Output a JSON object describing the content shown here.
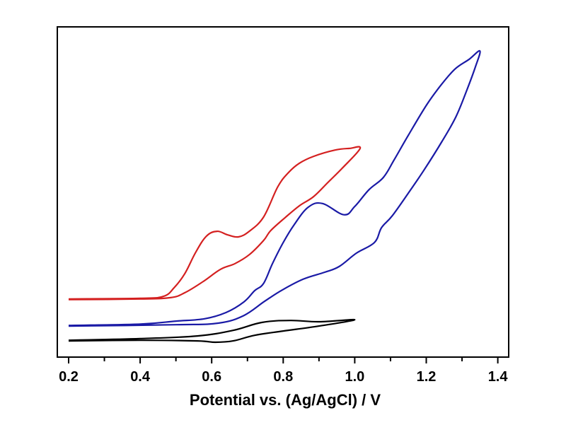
{
  "chart_data": {
    "type": "line",
    "title": "",
    "xlabel": "Potential vs. (Ag/AgCl) / V",
    "ylabel": "",
    "xlim": [
      0.18,
      1.43
    ],
    "ylim": [
      0,
      100
    ],
    "x_ticks": [
      "0.2",
      "0.4",
      "0.6",
      "0.8",
      "1.0",
      "1.2",
      "1.4"
    ],
    "x_tick_values": [
      0.2,
      0.4,
      0.6,
      0.8,
      1.0,
      1.2,
      1.4
    ],
    "x_minor_tick_values": [
      0.3,
      0.5,
      0.7,
      0.9,
      1.1,
      1.3
    ],
    "y_ticks": [],
    "grid": false,
    "legend": "none",
    "series": [
      {
        "name": "black",
        "color": "#000000",
        "points": [
          [
            0.2,
            5.1
          ],
          [
            0.4,
            5.6
          ],
          [
            0.56,
            6.4
          ],
          [
            0.66,
            8.1
          ],
          [
            0.74,
            10.5
          ],
          [
            0.82,
            11.1
          ],
          [
            0.9,
            10.7
          ],
          [
            1.0,
            11.3
          ],
          [
            0.9,
            9.4
          ],
          [
            0.8,
            7.9
          ],
          [
            0.72,
            6.6
          ],
          [
            0.66,
            4.9
          ],
          [
            0.61,
            4.5
          ],
          [
            0.56,
            4.9
          ],
          [
            0.4,
            5.1
          ],
          [
            0.2,
            4.9
          ]
        ]
      },
      {
        "name": "blue",
        "color": "#1a1aa6",
        "points": [
          [
            0.2,
            9.6
          ],
          [
            0.4,
            10.0
          ],
          [
            0.5,
            10.9
          ],
          [
            0.58,
            11.6
          ],
          [
            0.64,
            13.5
          ],
          [
            0.69,
            16.7
          ],
          [
            0.72,
            20.1
          ],
          [
            0.745,
            22.3
          ],
          [
            0.77,
            28.3
          ],
          [
            0.8,
            34.7
          ],
          [
            0.83,
            40.0
          ],
          [
            0.87,
            45.4
          ],
          [
            0.91,
            46.5
          ],
          [
            0.97,
            43.1
          ],
          [
            1.0,
            45.6
          ],
          [
            1.04,
            50.7
          ],
          [
            1.08,
            54.4
          ],
          [
            1.11,
            59.7
          ],
          [
            1.15,
            67.2
          ],
          [
            1.2,
            76.2
          ],
          [
            1.24,
            82.2
          ],
          [
            1.28,
            87.2
          ],
          [
            1.32,
            90.2
          ],
          [
            1.35,
            92.7
          ],
          [
            1.337,
            87.8
          ],
          [
            1.313,
            80.7
          ],
          [
            1.283,
            72.8
          ],
          [
            1.244,
            65.3
          ],
          [
            1.194,
            56.7
          ],
          [
            1.154,
            50.3
          ],
          [
            1.105,
            42.8
          ],
          [
            1.075,
            39.2
          ],
          [
            1.055,
            34.7
          ],
          [
            1.005,
            31.5
          ],
          [
            0.956,
            27.4
          ],
          [
            0.916,
            25.7
          ],
          [
            0.856,
            23.6
          ],
          [
            0.797,
            20.3
          ],
          [
            0.748,
            16.9
          ],
          [
            0.69,
            12.6
          ],
          [
            0.62,
            10.3
          ],
          [
            0.5,
            9.8
          ],
          [
            0.2,
            9.4
          ]
        ]
      },
      {
        "name": "red",
        "color": "#d42020",
        "points": [
          [
            0.2,
            17.6
          ],
          [
            0.4,
            17.8
          ],
          [
            0.465,
            18.4
          ],
          [
            0.495,
            21.0
          ],
          [
            0.525,
            25.3
          ],
          [
            0.555,
            31.7
          ],
          [
            0.585,
            36.6
          ],
          [
            0.615,
            38.1
          ],
          [
            0.645,
            37.0
          ],
          [
            0.675,
            36.4
          ],
          [
            0.705,
            38.1
          ],
          [
            0.745,
            42.4
          ],
          [
            0.785,
            51.6
          ],
          [
            0.815,
            55.9
          ],
          [
            0.845,
            58.7
          ],
          [
            0.885,
            60.8
          ],
          [
            0.945,
            62.7
          ],
          [
            0.985,
            63.2
          ],
          [
            1.015,
            63.2
          ],
          [
            0.965,
            57.2
          ],
          [
            0.925,
            52.9
          ],
          [
            0.885,
            48.6
          ],
          [
            0.845,
            45.8
          ],
          [
            0.805,
            42.2
          ],
          [
            0.765,
            38.3
          ],
          [
            0.745,
            35.3
          ],
          [
            0.705,
            31.0
          ],
          [
            0.665,
            28.3
          ],
          [
            0.625,
            26.6
          ],
          [
            0.575,
            22.8
          ],
          [
            0.525,
            19.5
          ],
          [
            0.485,
            18.0
          ],
          [
            0.4,
            17.6
          ],
          [
            0.2,
            17.4
          ]
        ]
      }
    ]
  }
}
